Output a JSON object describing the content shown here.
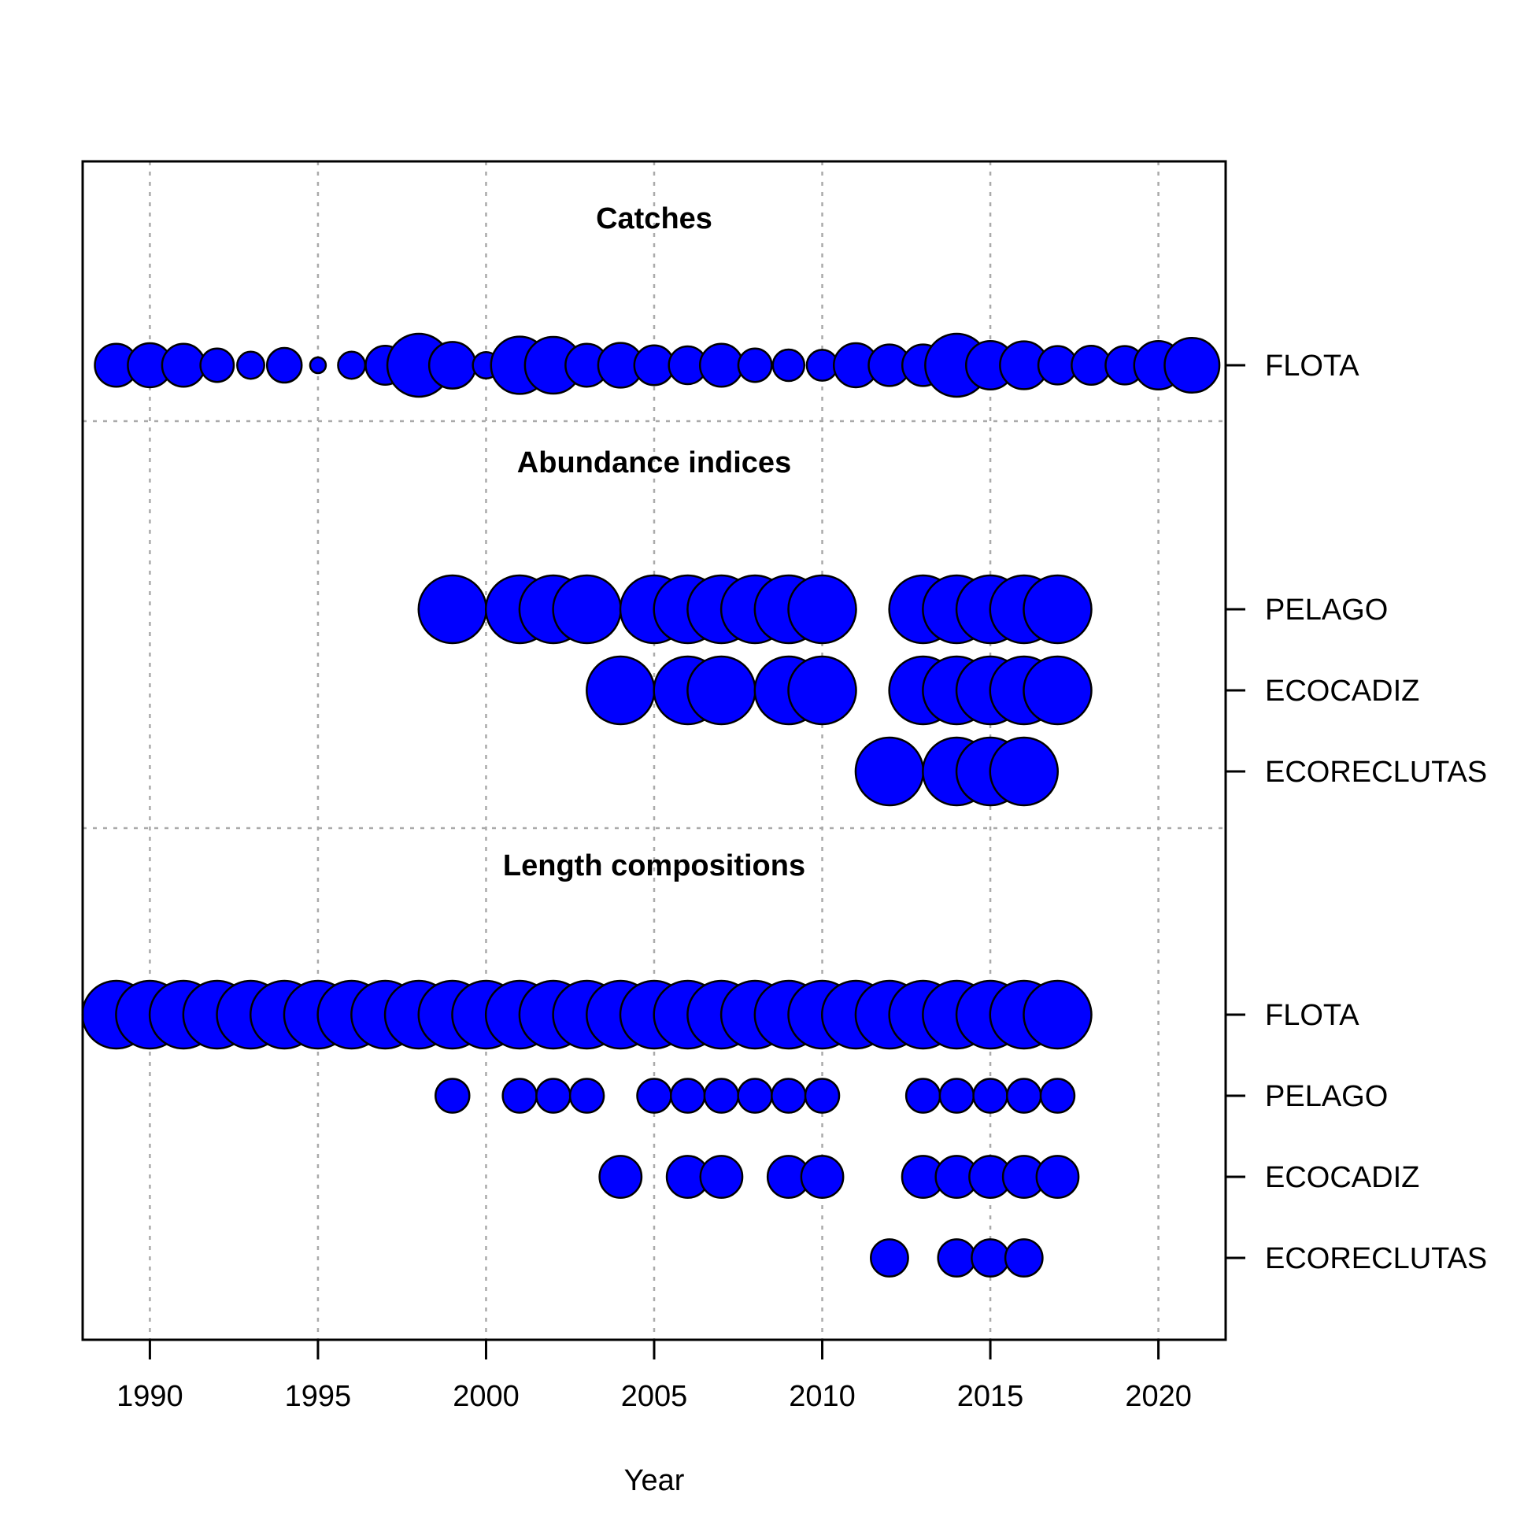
{
  "chart_data": {
    "type": "scatter",
    "xlabel": "Year",
    "xlim": [
      1988,
      2022
    ],
    "x_ticks": [
      1990,
      1995,
      2000,
      2005,
      2010,
      2015,
      2020
    ],
    "grid": true,
    "point_color": "#0000FF",
    "point_stroke": "#000000",
    "sections": [
      {
        "title": "Catches",
        "series": [
          {
            "name": "FLOTA",
            "points": [
              {
                "x": 1989,
                "size": 0.68
              },
              {
                "x": 1990,
                "size": 0.7
              },
              {
                "x": 1991,
                "size": 0.68
              },
              {
                "x": 1992,
                "size": 0.53
              },
              {
                "x": 1993,
                "size": 0.43
              },
              {
                "x": 1994,
                "size": 0.55
              },
              {
                "x": 1995,
                "size": 0.25
              },
              {
                "x": 1996,
                "size": 0.43
              },
              {
                "x": 1997,
                "size": 0.62
              },
              {
                "x": 1998,
                "size": 1.0
              },
              {
                "x": 1999,
                "size": 0.74
              },
              {
                "x": 2000,
                "size": 0.42
              },
              {
                "x": 2001,
                "size": 0.91
              },
              {
                "x": 2002,
                "size": 0.9
              },
              {
                "x": 2003,
                "size": 0.68
              },
              {
                "x": 2004,
                "size": 0.71
              },
              {
                "x": 2005,
                "size": 0.63
              },
              {
                "x": 2006,
                "size": 0.6
              },
              {
                "x": 2007,
                "size": 0.68
              },
              {
                "x": 2008,
                "size": 0.53
              },
              {
                "x": 2009,
                "size": 0.5
              },
              {
                "x": 2010,
                "size": 0.49
              },
              {
                "x": 2011,
                "size": 0.7
              },
              {
                "x": 2012,
                "size": 0.66
              },
              {
                "x": 2013,
                "size": 0.66
              },
              {
                "x": 2014,
                "size": 1.0
              },
              {
                "x": 2015,
                "size": 0.77
              },
              {
                "x": 2016,
                "size": 0.76
              },
              {
                "x": 2017,
                "size": 0.61
              },
              {
                "x": 2018,
                "size": 0.62
              },
              {
                "x": 2019,
                "size": 0.61
              },
              {
                "x": 2020,
                "size": 0.77
              },
              {
                "x": 2021,
                "size": 0.87
              }
            ]
          }
        ]
      },
      {
        "title": "Abundance indices",
        "series": [
          {
            "name": "PELAGO",
            "points": [
              {
                "x": 1999,
                "size": 1
              },
              {
                "x": 2001,
                "size": 1
              },
              {
                "x": 2002,
                "size": 1
              },
              {
                "x": 2003,
                "size": 1
              },
              {
                "x": 2005,
                "size": 1
              },
              {
                "x": 2006,
                "size": 1
              },
              {
                "x": 2007,
                "size": 1
              },
              {
                "x": 2008,
                "size": 1
              },
              {
                "x": 2009,
                "size": 1
              },
              {
                "x": 2010,
                "size": 1
              },
              {
                "x": 2013,
                "size": 1
              },
              {
                "x": 2014,
                "size": 1
              },
              {
                "x": 2015,
                "size": 1
              },
              {
                "x": 2016,
                "size": 1
              },
              {
                "x": 2017,
                "size": 1
              }
            ]
          },
          {
            "name": "ECOCADIZ",
            "points": [
              {
                "x": 2004,
                "size": 1
              },
              {
                "x": 2006,
                "size": 1
              },
              {
                "x": 2007,
                "size": 1
              },
              {
                "x": 2009,
                "size": 1
              },
              {
                "x": 2010,
                "size": 1
              },
              {
                "x": 2013,
                "size": 1
              },
              {
                "x": 2014,
                "size": 1
              },
              {
                "x": 2015,
                "size": 1
              },
              {
                "x": 2016,
                "size": 1
              },
              {
                "x": 2017,
                "size": 1
              }
            ]
          },
          {
            "name": "ECORECLUTAS",
            "points": [
              {
                "x": 2012,
                "size": 1
              },
              {
                "x": 2014,
                "size": 1
              },
              {
                "x": 2015,
                "size": 1
              },
              {
                "x": 2016,
                "size": 1
              }
            ]
          }
        ]
      },
      {
        "title": "Length compositions",
        "series": [
          {
            "name": "FLOTA",
            "points": [
              {
                "x": 1989,
                "size": 1
              },
              {
                "x": 1990,
                "size": 1
              },
              {
                "x": 1991,
                "size": 1
              },
              {
                "x": 1992,
                "size": 1
              },
              {
                "x": 1993,
                "size": 1
              },
              {
                "x": 1994,
                "size": 1
              },
              {
                "x": 1995,
                "size": 1
              },
              {
                "x": 1996,
                "size": 1
              },
              {
                "x": 1997,
                "size": 1
              },
              {
                "x": 1998,
                "size": 1
              },
              {
                "x": 1999,
                "size": 1
              },
              {
                "x": 2000,
                "size": 1
              },
              {
                "x": 2001,
                "size": 1
              },
              {
                "x": 2002,
                "size": 1
              },
              {
                "x": 2003,
                "size": 1
              },
              {
                "x": 2004,
                "size": 1
              },
              {
                "x": 2005,
                "size": 1
              },
              {
                "x": 2006,
                "size": 1
              },
              {
                "x": 2007,
                "size": 1
              },
              {
                "x": 2008,
                "size": 1
              },
              {
                "x": 2009,
                "size": 1
              },
              {
                "x": 2010,
                "size": 1
              },
              {
                "x": 2011,
                "size": 1
              },
              {
                "x": 2012,
                "size": 1
              },
              {
                "x": 2013,
                "size": 1
              },
              {
                "x": 2014,
                "size": 1
              },
              {
                "x": 2015,
                "size": 1
              },
              {
                "x": 2016,
                "size": 1
              },
              {
                "x": 2017,
                "size": 1
              }
            ]
          },
          {
            "name": "PELAGO",
            "points": [
              {
                "x": 1999,
                "size": 0.5
              },
              {
                "x": 2001,
                "size": 0.5
              },
              {
                "x": 2002,
                "size": 0.5
              },
              {
                "x": 2003,
                "size": 0.5
              },
              {
                "x": 2005,
                "size": 0.5
              },
              {
                "x": 2006,
                "size": 0.5
              },
              {
                "x": 2007,
                "size": 0.5
              },
              {
                "x": 2008,
                "size": 0.5
              },
              {
                "x": 2009,
                "size": 0.5
              },
              {
                "x": 2010,
                "size": 0.5
              },
              {
                "x": 2013,
                "size": 0.5
              },
              {
                "x": 2014,
                "size": 0.5
              },
              {
                "x": 2015,
                "size": 0.5
              },
              {
                "x": 2016,
                "size": 0.5
              },
              {
                "x": 2017,
                "size": 0.5
              }
            ]
          },
          {
            "name": "ECOCADIZ",
            "points": [
              {
                "x": 2004,
                "size": 0.62
              },
              {
                "x": 2006,
                "size": 0.62
              },
              {
                "x": 2007,
                "size": 0.62
              },
              {
                "x": 2009,
                "size": 0.62
              },
              {
                "x": 2010,
                "size": 0.62
              },
              {
                "x": 2013,
                "size": 0.62
              },
              {
                "x": 2014,
                "size": 0.62
              },
              {
                "x": 2015,
                "size": 0.62
              },
              {
                "x": 2016,
                "size": 0.62
              },
              {
                "x": 2017,
                "size": 0.62
              }
            ]
          },
          {
            "name": "ECORECLUTAS",
            "points": [
              {
                "x": 2012,
                "size": 0.55
              },
              {
                "x": 2014,
                "size": 0.55
              },
              {
                "x": 2015,
                "size": 0.55
              },
              {
                "x": 2016,
                "size": 0.55
              }
            ]
          }
        ]
      }
    ]
  }
}
